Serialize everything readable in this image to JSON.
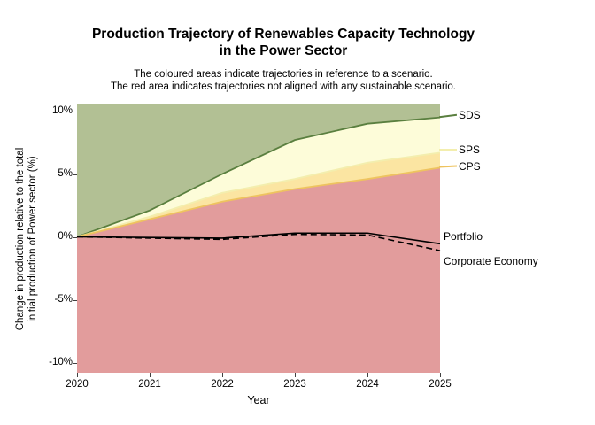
{
  "chart_data": {
    "type": "area",
    "title": "Production Trajectory of Renewables Capacity Technology\nin the Power Sector",
    "subtitle_line1": "The coloured areas indicate trajectories in reference to a scenario.",
    "subtitle_line2": "The red area indicates trajectories not aligned with any sustainable scenario.",
    "xlabel": "Year",
    "ylabel_line1": "Change in production relative to the total",
    "ylabel_line2": "initial production of Power sector (%)",
    "x": [
      2020,
      2021,
      2022,
      2023,
      2024,
      2025
    ],
    "x_tick_labels": [
      "2020",
      "2021",
      "2022",
      "2023",
      "2024",
      "2025"
    ],
    "y_tick_labels": [
      "10%",
      "5%",
      "0%",
      "-5%",
      "-10%"
    ],
    "y_tick_values": [
      10,
      5,
      0,
      -5,
      -10
    ],
    "ylim": [
      -10.8,
      10.5
    ],
    "grid": false,
    "top_area_color": "#b2c094",
    "scenarios": [
      {
        "name": "SDS",
        "values": [
          0,
          2.1,
          5.0,
          7.7,
          9.0,
          9.5
        ],
        "stroke": "#5a7f3f",
        "fill_below": "#fdfcd9"
      },
      {
        "name": "SPS",
        "values": [
          0,
          1.6,
          3.5,
          4.6,
          5.9,
          6.7
        ],
        "stroke": "#f3eeae",
        "fill_below": "#fbe5a2"
      },
      {
        "name": "CPS",
        "values": [
          0,
          1.4,
          2.8,
          3.8,
          4.6,
          5.5
        ],
        "stroke": "#eec35f",
        "fill_below": "#e29c9c"
      }
    ],
    "lines": [
      {
        "name": "Portfolio",
        "values": [
          0,
          -0.05,
          -0.1,
          0.3,
          0.3,
          -0.55
        ],
        "style": "solid",
        "color": "#000000"
      },
      {
        "name": "Corporate Economy",
        "values": [
          0,
          -0.1,
          -0.2,
          0.2,
          0.15,
          -1.1
        ],
        "style": "dashed",
        "color": "#000000"
      }
    ],
    "right_labels": {
      "sds": "SDS",
      "sps": "SPS",
      "cps": "CPS",
      "portfolio": "Portfolio",
      "corporate": "Corporate Economy"
    }
  }
}
